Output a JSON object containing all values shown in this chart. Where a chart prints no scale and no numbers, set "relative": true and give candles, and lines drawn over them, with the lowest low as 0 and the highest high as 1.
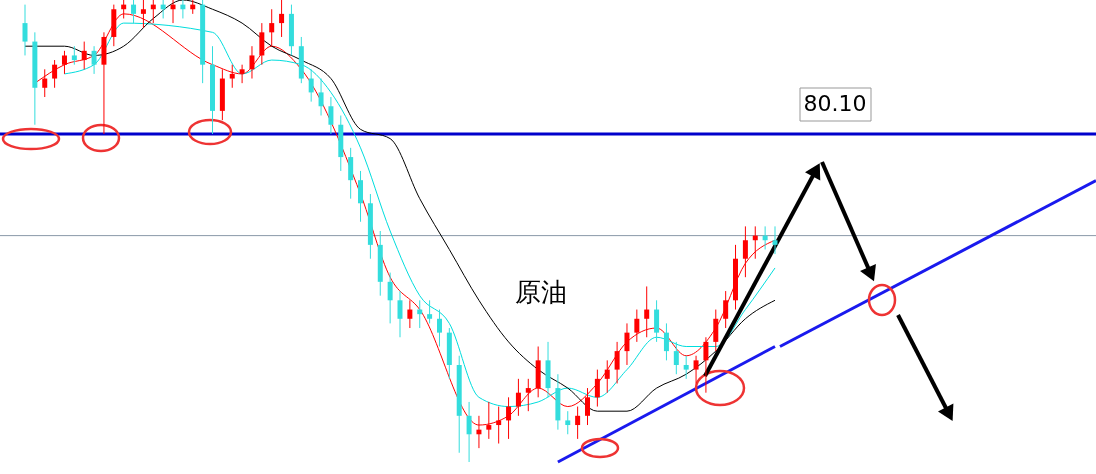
{
  "chart_data": {
    "type": "candlestick",
    "relative": true,
    "categories": [
      null,
      null,
      null,
      null,
      null,
      null,
      null,
      null,
      null,
      null,
      null,
      null,
      null,
      null,
      null,
      null,
      null,
      null,
      null,
      null,
      null,
      null,
      null,
      null,
      null,
      null,
      null,
      null,
      null,
      null,
      null,
      null,
      null,
      null,
      null,
      null,
      null,
      null,
      null,
      null,
      null,
      null,
      null,
      null,
      null,
      null,
      null,
      null,
      null,
      null,
      null,
      null,
      null,
      null,
      null,
      null,
      null,
      null,
      null,
      null,
      null,
      null,
      null,
      null,
      null,
      null,
      null,
      null,
      null,
      null,
      null,
      null,
      null,
      null,
      null,
      null,
      null
    ],
    "colors": [
      "#33dddd",
      "#33dddd",
      "#ff0000",
      "#ff0000",
      "#ff0000",
      "#33dddd",
      "#ff0000",
      "#33dddd",
      "#ff0000",
      "#ff0000",
      "#ff0000",
      "#33dddd",
      "#ff0000",
      "#ff0000",
      "#33dddd",
      "#ff0000",
      "#33dddd",
      "#ff0000",
      "#33dddd",
      "#33dddd",
      "#ff0000",
      "#ff0000",
      "#ff0000",
      "#ff0000",
      "#ff0000",
      "#ff0000",
      "#ff0000",
      "#33dddd",
      "#33dddd",
      "#33dddd",
      "#33dddd",
      "#33dddd",
      "#33dddd",
      "#33dddd",
      "#33dddd",
      "#33dddd",
      "#33dddd",
      "#33dddd",
      "#33dddd",
      "#ff0000",
      "#33dddd",
      "#33dddd",
      "#33dddd",
      "#33dddd",
      "#33dddd",
      "#33dddd",
      "#ff0000",
      "#ff0000",
      "#ff0000",
      "#ff0000",
      "#ff0000",
      "#ff0000",
      "#ff0000",
      "#33dddd",
      "#33dddd",
      "#33dddd",
      "#ff0000",
      "#ff0000",
      "#ff0000",
      "#ff0000",
      "#ff0000",
      "#ff0000",
      "#ff0000",
      "#ff0000",
      "#33dddd",
      "#33dddd",
      "#33dddd",
      "#33dddd",
      "#ff0000",
      "#ff0000",
      "#ff0000",
      "#ff0000",
      "#ff0000",
      "#ff0000",
      "#ff0000",
      "#33dddd",
      "#33dddd"
    ],
    "ohlc": [
      [
        0.95,
        0.99,
        0.88,
        0.91
      ],
      [
        0.91,
        0.93,
        0.73,
        0.81
      ],
      [
        0.81,
        0.85,
        0.79,
        0.83
      ],
      [
        0.83,
        0.87,
        0.81,
        0.86
      ],
      [
        0.86,
        0.89,
        0.84,
        0.88
      ],
      [
        0.88,
        0.9,
        0.86,
        0.87
      ],
      [
        0.87,
        0.91,
        0.85,
        0.89
      ],
      [
        0.89,
        0.9,
        0.84,
        0.86
      ],
      [
        0.86,
        0.93,
        0.71,
        0.92
      ],
      [
        0.92,
        0.99,
        0.9,
        0.98
      ],
      [
        0.98,
        1.0,
        0.96,
        0.99
      ],
      [
        0.99,
        1.0,
        0.95,
        0.97
      ],
      [
        0.97,
        1.0,
        0.94,
        0.98
      ],
      [
        0.98,
        1.0,
        0.95,
        0.99
      ],
      [
        0.99,
        1.0,
        0.96,
        0.98
      ],
      [
        0.98,
        1.0,
        0.95,
        0.99
      ],
      [
        0.99,
        1.0,
        0.96,
        0.98
      ],
      [
        0.98,
        1.0,
        0.97,
        0.99
      ],
      [
        0.99,
        1.0,
        0.82,
        0.86
      ],
      [
        0.86,
        0.9,
        0.71,
        0.76
      ],
      [
        0.76,
        0.85,
        0.74,
        0.83
      ],
      [
        0.83,
        0.86,
        0.81,
        0.84
      ],
      [
        0.84,
        0.86,
        0.82,
        0.85
      ],
      [
        0.85,
        0.9,
        0.83,
        0.88
      ],
      [
        0.88,
        0.95,
        0.86,
        0.93
      ],
      [
        0.93,
        0.98,
        0.9,
        0.95
      ],
      [
        0.95,
        1.0,
        0.92,
        0.97
      ],
      [
        0.97,
        0.99,
        0.88,
        0.9
      ],
      [
        0.9,
        0.92,
        0.82,
        0.83
      ],
      [
        0.83,
        0.85,
        0.78,
        0.8
      ],
      [
        0.8,
        0.83,
        0.75,
        0.77
      ],
      [
        0.77,
        0.79,
        0.71,
        0.73
      ],
      [
        0.73,
        0.75,
        0.63,
        0.66
      ],
      [
        0.66,
        0.68,
        0.57,
        0.61
      ],
      [
        0.61,
        0.63,
        0.52,
        0.56
      ],
      [
        0.56,
        0.58,
        0.44,
        0.47
      ],
      [
        0.47,
        0.5,
        0.36,
        0.39
      ],
      [
        0.39,
        0.41,
        0.3,
        0.35
      ],
      [
        0.35,
        0.37,
        0.27,
        0.31
      ],
      [
        0.31,
        0.35,
        0.29,
        0.33
      ],
      [
        0.33,
        0.35,
        0.29,
        0.32
      ],
      [
        0.32,
        0.35,
        0.3,
        0.31
      ],
      [
        0.31,
        0.33,
        0.25,
        0.28
      ],
      [
        0.28,
        0.29,
        0.18,
        0.21
      ],
      [
        0.21,
        0.23,
        0.02,
        0.1
      ],
      [
        0.1,
        0.13,
        0.0,
        0.06
      ],
      [
        0.06,
        0.1,
        0.03,
        0.07
      ],
      [
        0.07,
        0.13,
        0.05,
        0.08
      ],
      [
        0.08,
        0.12,
        0.04,
        0.09
      ],
      [
        0.09,
        0.14,
        0.05,
        0.12
      ],
      [
        0.12,
        0.18,
        0.1,
        0.15
      ],
      [
        0.15,
        0.18,
        0.11,
        0.16
      ],
      [
        0.16,
        0.25,
        0.14,
        0.22
      ],
      [
        0.22,
        0.26,
        0.14,
        0.16
      ],
      [
        0.16,
        0.19,
        0.07,
        0.09
      ],
      [
        0.09,
        0.11,
        0.06,
        0.08
      ],
      [
        0.08,
        0.12,
        0.05,
        0.1
      ],
      [
        0.1,
        0.16,
        0.08,
        0.14
      ],
      [
        0.14,
        0.2,
        0.12,
        0.18
      ],
      [
        0.18,
        0.22,
        0.15,
        0.2
      ],
      [
        0.2,
        0.26,
        0.17,
        0.24
      ],
      [
        0.24,
        0.3,
        0.21,
        0.28
      ],
      [
        0.28,
        0.33,
        0.26,
        0.31
      ],
      [
        0.31,
        0.38,
        0.27,
        0.33
      ],
      [
        0.33,
        0.35,
        0.26,
        0.28
      ],
      [
        0.28,
        0.3,
        0.22,
        0.24
      ],
      [
        0.24,
        0.26,
        0.19,
        0.21
      ],
      [
        0.21,
        0.23,
        0.18,
        0.2
      ],
      [
        0.2,
        0.23,
        0.17,
        0.22
      ],
      [
        0.22,
        0.27,
        0.15,
        0.26
      ],
      [
        0.26,
        0.33,
        0.24,
        0.31
      ],
      [
        0.31,
        0.37,
        0.29,
        0.35
      ],
      [
        0.35,
        0.47,
        0.33,
        0.44
      ],
      [
        0.44,
        0.51,
        0.4,
        0.48
      ],
      [
        0.48,
        0.51,
        0.44,
        0.49
      ],
      [
        0.49,
        0.51,
        0.46,
        0.48
      ],
      [
        0.48,
        0.51,
        0.45,
        0.47
      ]
    ],
    "series": [
      {
        "type": "line",
        "color": "#ff0000",
        "values": [
          null,
          0.82,
          null,
          null,
          0.86,
          null,
          null,
          0.88,
          null,
          null,
          0.97,
          null,
          null,
          null,
          null,
          null,
          null,
          null,
          null,
          0.86,
          null,
          null,
          0.84,
          null,
          null,
          0.9,
          null,
          null,
          0.85,
          null,
          null,
          null,
          null,
          null,
          0.58,
          null,
          null,
          0.4,
          null,
          null,
          0.33,
          null,
          null,
          null,
          null,
          null,
          0.08,
          null,
          null,
          0.1,
          null,
          null,
          0.16,
          null,
          null,
          0.12,
          null,
          null,
          0.17,
          null,
          null,
          0.26,
          null,
          null,
          0.29,
          null,
          null,
          0.23,
          null,
          null,
          0.29,
          null,
          null,
          0.43,
          null,
          null,
          0.48
        ]
      },
      {
        "type": "line",
        "color": "#00dddd",
        "values": [
          null,
          null,
          null,
          null,
          0.84,
          null,
          null,
          0.86,
          null,
          null,
          0.95,
          null,
          null,
          null,
          null,
          null,
          null,
          null,
          null,
          0.93,
          null,
          null,
          0.84,
          null,
          null,
          0.87,
          null,
          null,
          0.86,
          null,
          null,
          0.8,
          null,
          null,
          0.68,
          null,
          null,
          0.5,
          null,
          null,
          0.36,
          null,
          null,
          0.3,
          null,
          null,
          0.14,
          null,
          null,
          0.12,
          null,
          null,
          0.13,
          null,
          null,
          0.16,
          null,
          null,
          0.14,
          null,
          null,
          0.2,
          null,
          null,
          0.27,
          null,
          null,
          0.25,
          null,
          null,
          0.25,
          null,
          null,
          0.33,
          null,
          null,
          0.42
        ]
      },
      {
        "type": "line",
        "color": "#000000",
        "values": [
          0.9,
          0.9,
          null,
          null,
          0.9,
          null,
          null,
          0.88,
          null,
          null,
          0.9,
          null,
          null,
          0.96,
          null,
          null,
          1.0,
          null,
          null,
          0.98,
          null,
          null,
          0.95,
          null,
          null,
          0.9,
          null,
          null,
          0.87,
          null,
          null,
          0.83,
          null,
          null,
          0.72,
          null,
          null,
          0.7,
          null,
          null,
          0.57,
          null,
          null,
          0.46,
          null,
          null,
          0.35,
          null,
          null,
          0.26,
          null,
          null,
          0.2,
          null,
          null,
          0.16,
          null,
          null,
          0.11,
          null,
          null,
          0.11,
          null,
          null,
          0.16,
          null,
          null,
          0.19,
          null,
          null,
          0.24,
          null,
          null,
          0.31,
          null,
          null,
          0.35
        ]
      },
      {
        "type": "line",
        "color": "#1a1aee",
        "values": [
          null,
          null,
          null,
          null,
          null,
          null,
          null,
          null,
          null,
          null,
          null,
          null,
          null,
          null,
          null,
          null,
          null,
          null,
          null,
          null,
          null,
          null,
          null,
          null,
          null,
          null,
          null,
          null,
          null,
          null,
          null,
          null,
          null,
          null,
          null,
          null,
          null,
          null,
          null,
          null,
          null,
          null,
          null,
          null,
          null,
          null,
          null,
          null,
          null,
          null,
          null,
          null,
          null,
          null,
          0.0,
          null,
          null,
          null,
          null,
          null,
          null,
          null,
          null,
          null,
          null,
          null,
          null,
          null,
          null,
          null,
          null,
          null,
          null,
          null,
          null,
          null,
          0.25
        ]
      }
    ],
    "ref_lines": [
      {
        "axis": "y",
        "value": 0.71,
        "color": "#0000cc"
      },
      {
        "axis": "y",
        "value": 0.49,
        "color": "#8a98a8"
      }
    ],
    "annotations": [
      "80.10",
      "原油"
    ]
  }
}
